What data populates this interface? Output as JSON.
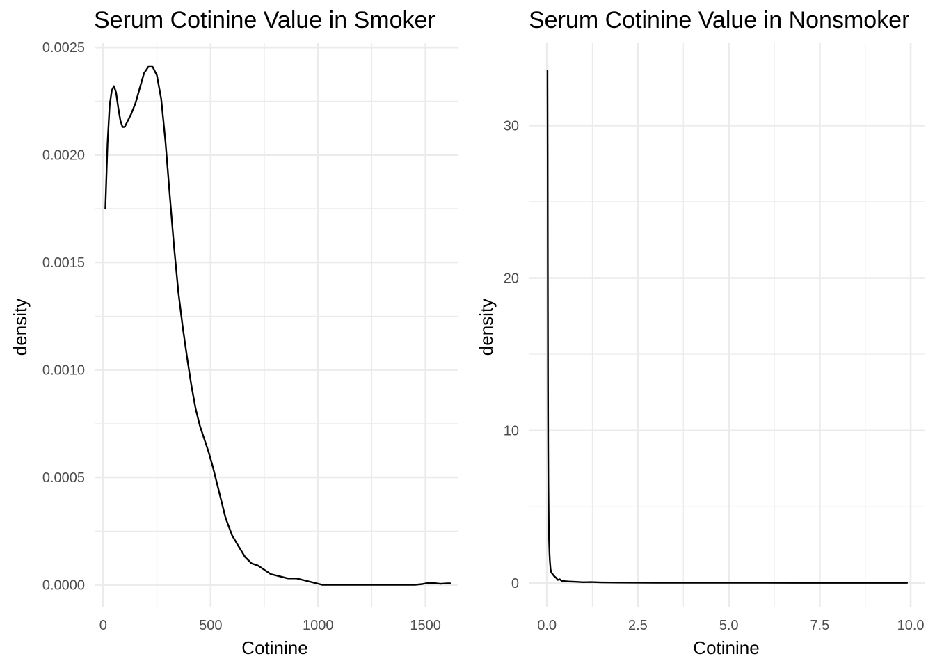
{
  "chart_data": [
    {
      "type": "line",
      "title": "Serum Cotinine Value in Smoker",
      "xlabel": "Cotinine",
      "ylabel": "density",
      "xlim": [
        -40,
        1650
      ],
      "ylim": [
        -0.000105,
        0.00252
      ],
      "grid": true,
      "x_ticks": [
        0,
        500,
        1000,
        1500
      ],
      "x_tick_labels": [
        "0",
        "500",
        "1000",
        "1500"
      ],
      "x_minor_ticks": [
        250,
        750,
        1250
      ],
      "y_ticks": [
        0,
        0.0005,
        0.001,
        0.0015,
        0.002,
        0.0025
      ],
      "y_tick_labels": [
        "0.0000",
        "0.0005",
        "0.0010",
        "0.0015",
        "0.0020",
        "0.0025"
      ],
      "y_minor_ticks": [
        0.00025,
        0.00075,
        0.00125,
        0.00175,
        0.00225
      ],
      "series": [
        {
          "color": "#000000",
          "x": [
            10,
            20,
            30,
            40,
            50,
            60,
            70,
            80,
            90,
            100,
            110,
            130,
            150,
            170,
            190,
            210,
            230,
            250,
            270,
            290,
            310,
            330,
            350,
            370,
            390,
            410,
            430,
            450,
            470,
            490,
            510,
            530,
            550,
            570,
            600,
            630,
            660,
            690,
            720,
            750,
            780,
            820,
            860,
            900,
            940,
            980,
            1000,
            1020,
            1100,
            1200,
            1300,
            1400,
            1450,
            1480,
            1510,
            1540,
            1570,
            1600,
            1615
          ],
          "y": [
            0.00175,
            0.00205,
            0.00223,
            0.0023,
            0.00232,
            0.00229,
            0.00222,
            0.00216,
            0.00213,
            0.00213,
            0.00215,
            0.00219,
            0.00224,
            0.00231,
            0.00238,
            0.00241,
            0.00241,
            0.00237,
            0.00226,
            0.00206,
            0.00181,
            0.00157,
            0.00136,
            0.0012,
            0.00106,
            0.00093,
            0.00082,
            0.00074,
            0.00068,
            0.00062,
            0.00055,
            0.00047,
            0.00039,
            0.00031,
            0.00023,
            0.00018,
            0.00013,
            0.0001,
            9e-05,
            7e-05,
            5e-05,
            4e-05,
            3e-05,
            3e-05,
            2e-05,
            1e-05,
            5e-06,
            0.0,
            0.0,
            0.0,
            0.0,
            0.0,
            0.0,
            3e-06,
            8e-06,
            8e-06,
            5e-06,
            7e-06,
            7e-06
          ]
        }
      ]
    },
    {
      "type": "line",
      "title": "Serum Cotinine Value in Nonsmoker",
      "xlabel": "Cotinine",
      "ylabel": "density",
      "xlim": [
        -0.5,
        10.4
      ],
      "ylim": [
        -1.6,
        35.4
      ],
      "grid": true,
      "x_ticks": [
        0,
        2.5,
        5,
        7.5,
        10
      ],
      "x_tick_labels": [
        "0.0",
        "2.5",
        "5.0",
        "7.5",
        "10.0"
      ],
      "x_minor_ticks": [
        1.25,
        3.75,
        6.25,
        8.75
      ],
      "y_ticks": [
        0,
        10,
        20,
        30
      ],
      "y_tick_labels": [
        "0",
        "10",
        "20",
        "30"
      ],
      "y_minor_ticks": [
        5,
        15,
        25
      ],
      "series": [
        {
          "color": "#000000",
          "x": [
            0.015,
            0.02,
            0.025,
            0.03,
            0.035,
            0.04,
            0.05,
            0.06,
            0.07,
            0.08,
            0.1,
            0.12,
            0.15,
            0.2,
            0.25,
            0.3,
            0.35,
            0.4,
            0.5,
            0.6,
            0.8,
            1.0,
            1.2,
            1.5,
            2.0,
            3.0,
            4.0,
            5.0,
            6.0,
            7.0,
            8.0,
            9.0,
            9.9
          ],
          "y": [
            33.6,
            28.0,
            20.0,
            13.0,
            9.0,
            6.5,
            4.0,
            2.8,
            2.0,
            1.5,
            0.9,
            0.7,
            0.6,
            0.45,
            0.35,
            0.2,
            0.25,
            0.15,
            0.12,
            0.1,
            0.08,
            0.05,
            0.06,
            0.04,
            0.03,
            0.02,
            0.02,
            0.02,
            0.02,
            0.01,
            0.01,
            0.01,
            0.01
          ]
        }
      ]
    }
  ]
}
